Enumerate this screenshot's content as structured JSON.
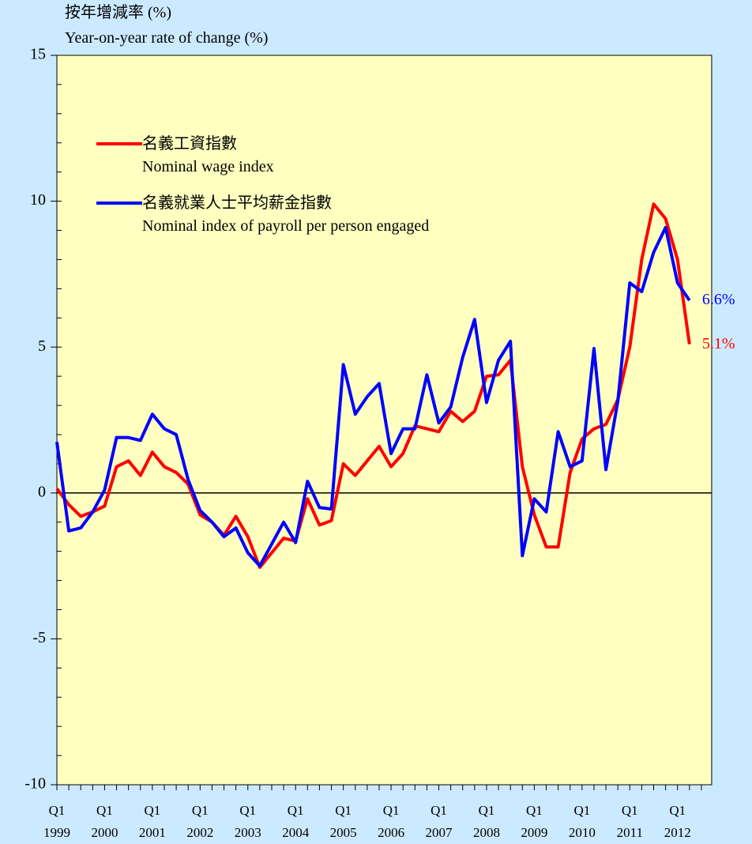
{
  "chart_data": {
    "type": "line",
    "y_label": [
      "按年增減率 (%)",
      "Year-on-year rate of change (%)"
    ],
    "categories": [
      "Q1\n1999",
      null,
      null,
      null,
      "Q1\n2000",
      null,
      null,
      null,
      "Q1\n2001",
      null,
      null,
      null,
      "Q1\n2002",
      null,
      null,
      null,
      "Q1\n2003",
      null,
      null,
      null,
      "Q1\n2004",
      null,
      null,
      null,
      "Q1\n2005",
      null,
      null,
      null,
      "Q1\n2006",
      null,
      null,
      null,
      "Q1\n2007",
      null,
      null,
      null,
      "Q1\n2008",
      null,
      null,
      null,
      "Q1\n2009",
      null,
      null,
      null,
      "Q1\n2010",
      null,
      null,
      null,
      "Q1\n2011",
      null,
      null,
      null,
      "Q1\n2012",
      null
    ],
    "series": [
      {
        "name": "名義工資指數\nNominal wage index",
        "color": "#ff0000",
        "end_label": "5.1%",
        "values": [
          0.15,
          -0.4,
          -0.8,
          -0.65,
          -0.45,
          0.9,
          1.1,
          0.6,
          1.4,
          0.9,
          0.7,
          0.3,
          -0.75,
          -1.0,
          -1.45,
          -0.8,
          -1.5,
          -2.55,
          -2.05,
          -1.55,
          -1.65,
          -0.2,
          -1.1,
          -0.95,
          1.0,
          0.6,
          1.1,
          1.6,
          0.9,
          1.35,
          2.3,
          2.2,
          2.1,
          2.8,
          2.45,
          2.8,
          4.0,
          4.05,
          4.55,
          0.9,
          -0.75,
          -1.85,
          -1.85,
          0.7,
          1.85,
          2.2,
          2.35,
          3.2,
          5.0,
          8.0,
          9.9,
          9.4,
          8.0,
          5.1
        ]
      },
      {
        "name": "名義就業人士平均薪金指數\nNominal index of payroll per person engaged",
        "color": "#0000ff",
        "end_label": "6.6%",
        "values": [
          1.75,
          -1.3,
          -1.2,
          -0.65,
          0.1,
          1.9,
          1.9,
          1.8,
          2.7,
          2.2,
          2.0,
          0.45,
          -0.6,
          -1.0,
          -1.5,
          -1.2,
          -2.05,
          -2.5,
          -1.75,
          -1.0,
          -1.7,
          0.4,
          -0.5,
          -0.55,
          4.4,
          2.7,
          3.3,
          3.75,
          1.35,
          2.2,
          2.2,
          4.05,
          2.4,
          2.95,
          4.65,
          5.95,
          3.1,
          4.55,
          5.2,
          -2.15,
          -0.2,
          -0.65,
          2.1,
          0.9,
          1.1,
          4.95,
          0.8,
          3.15,
          7.2,
          6.9,
          8.25,
          9.1,
          7.2,
          6.6
        ]
      }
    ],
    "ylim": [
      -10,
      15
    ],
    "yticks": [
      -10,
      -5,
      0,
      5,
      10,
      15
    ],
    "zero_line": true
  }
}
